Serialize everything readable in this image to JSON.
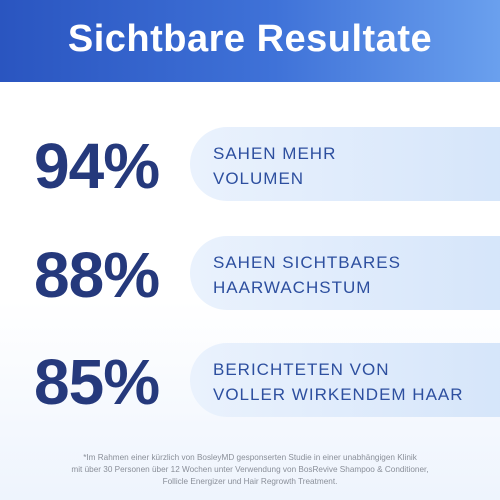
{
  "header": {
    "title": "Sichtbare Resultate"
  },
  "stats": [
    {
      "value": "94%",
      "lines": [
        "SAHEN MEHR",
        "VOLUMEN"
      ]
    },
    {
      "value": "88%",
      "lines": [
        "SAHEN SICHTBARES",
        "HAARWACHSTUM"
      ]
    },
    {
      "value": "85%",
      "lines": [
        "BERICHTETEN VON",
        "VOLLER WIRKENDEM HAAR"
      ]
    }
  ],
  "footnote": [
    "*Im Rahmen einer kürzlich von BosleyMD gesponserten Studie in einer unabhängigen Klinik",
    "mit über 30 Personen über 12 Wochen unter Verwendung von BosRevive Shampoo & Conditioner,",
    "Follicle Energizer und Hair Regrowth Treatment."
  ]
}
